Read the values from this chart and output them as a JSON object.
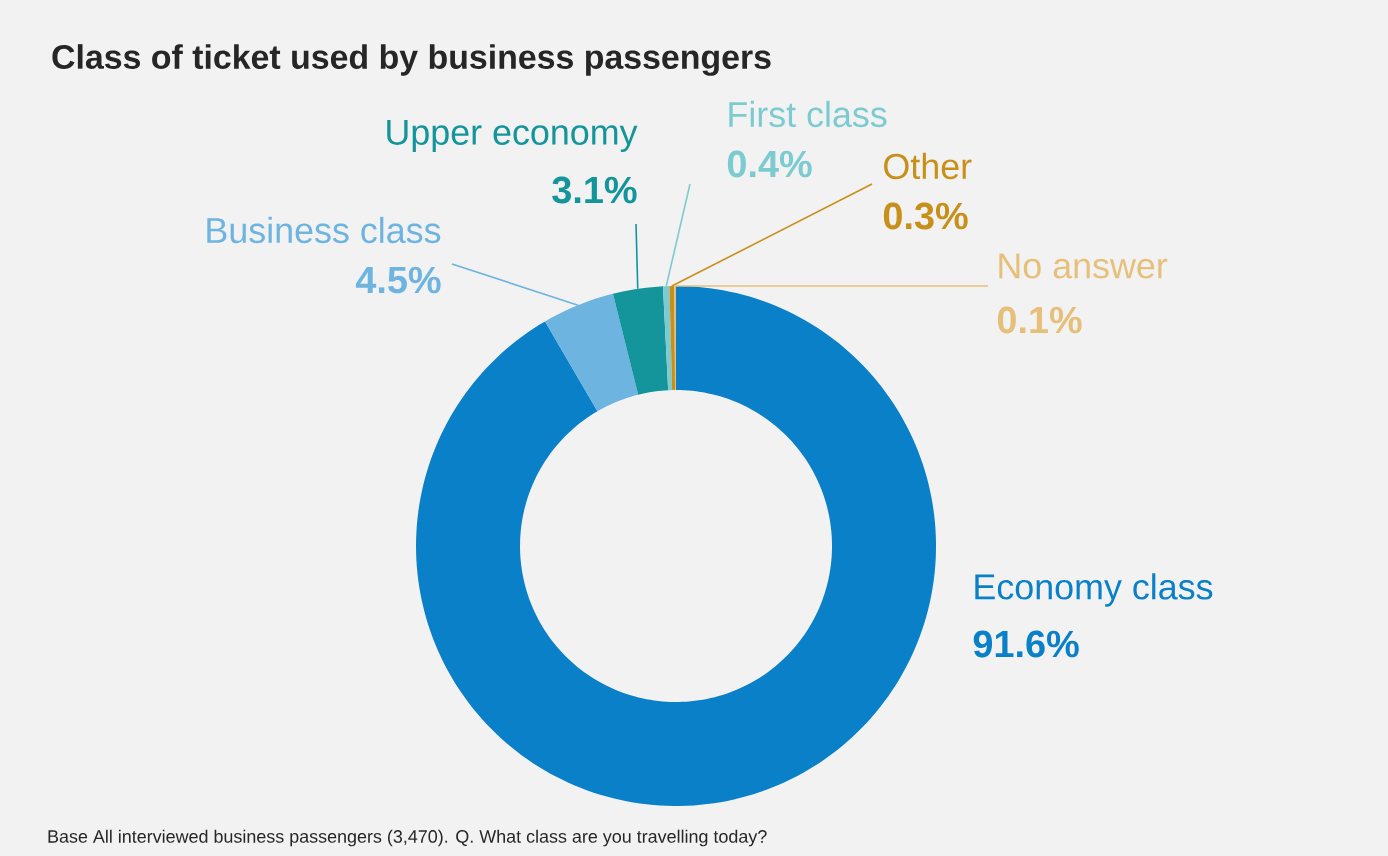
{
  "chart_data": {
    "type": "donut",
    "title": "Class of ticket used by business passengers",
    "categories": [
      "Economy class",
      "Business class",
      "Upper economy",
      "First class",
      "Other",
      "No answer"
    ],
    "values": [
      91.6,
      4.5,
      3.1,
      0.4,
      0.3,
      0.1
    ],
    "value_labels": [
      "91.6%",
      "4.5%",
      "3.1%",
      "0.4%",
      "0.3%",
      "0.1%"
    ],
    "colors": [
      "#0a80c8",
      "#6db4e0",
      "#14959c",
      "#7ccbd0",
      "#c8901a",
      "#e6c07a"
    ],
    "annotations": [
      "Base  All interviewed business passengers (3,470). Q. What class are you travelling today?"
    ]
  }
}
